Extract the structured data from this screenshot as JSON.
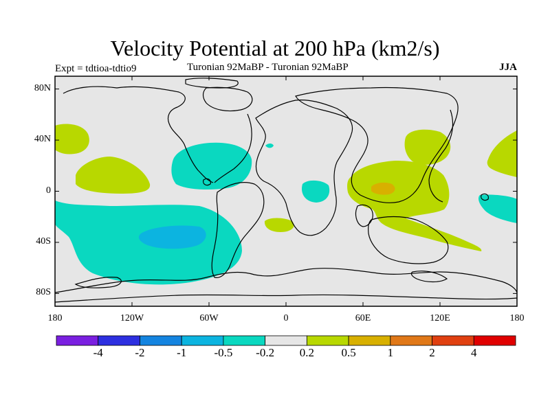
{
  "header": {
    "title": "Velocity Potential at 200 hPa (km2/s)",
    "expt": "Expt = tdtioa-tdtio9",
    "subtitle": "Turonian  92MaBP - Turonian  92MaBP",
    "season": "JJA"
  },
  "axes": {
    "y_ticks": [
      {
        "value": 80,
        "label": "80N"
      },
      {
        "value": 40,
        "label": "40N"
      },
      {
        "value": 0,
        "label": "0"
      },
      {
        "value": -40,
        "label": "40S"
      },
      {
        "value": -80,
        "label": "80S"
      }
    ],
    "x_ticks": [
      {
        "value": -180,
        "label": "180"
      },
      {
        "value": -120,
        "label": "120W"
      },
      {
        "value": -60,
        "label": "60W"
      },
      {
        "value": 0,
        "label": "0"
      },
      {
        "value": 60,
        "label": "60E"
      },
      {
        "value": 120,
        "label": "120E"
      },
      {
        "value": 180,
        "label": "180"
      }
    ],
    "lon_range": [
      -180,
      180
    ],
    "lat_range": [
      -90,
      90
    ]
  },
  "colorbar": {
    "colors": [
      "#7a1fe0",
      "#2d2fe0",
      "#1484e0",
      "#0cb4e0",
      "#0ad8c0",
      "#e6e6e6",
      "#b8d800",
      "#d8b000",
      "#e07818",
      "#e04010",
      "#e00000"
    ],
    "labels": [
      "-4",
      "-2",
      "-1",
      "-0.5",
      "-0.2",
      "0.2",
      "0.5",
      "1",
      "2",
      "4"
    ]
  },
  "map": {
    "background": "#e6e6e6",
    "neg_color": "#0ad8c0",
    "neg2_color": "#0cb4e0",
    "pos_color": "#b8d800",
    "pos2_color": "#d8b000"
  }
}
